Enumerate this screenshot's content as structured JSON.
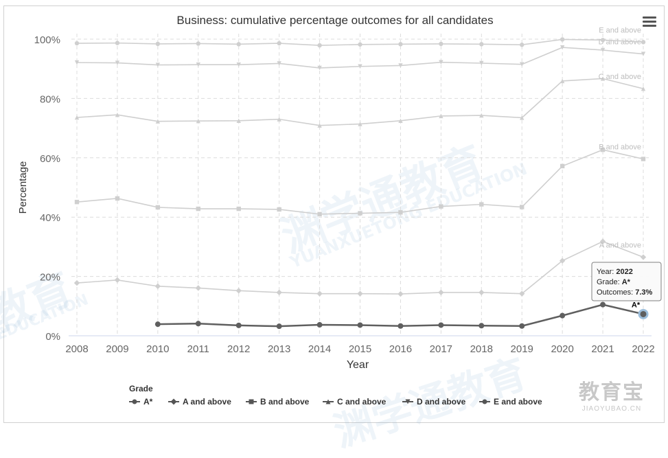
{
  "chart_data": {
    "type": "line",
    "title": "Business: cumulative percentage outcomes for all candidates",
    "xlabel": "Year",
    "ylabel": "Percentage",
    "x": [
      2008,
      2009,
      2010,
      2011,
      2012,
      2013,
      2014,
      2015,
      2016,
      2017,
      2018,
      2019,
      2020,
      2021,
      2022
    ],
    "y_ticks": [
      "0%",
      "20%",
      "40%",
      "60%",
      "80%",
      "100%"
    ],
    "ylim": [
      0,
      100
    ],
    "grid": true,
    "legend_title": "Grade",
    "legend_position": "bottom-left",
    "series": [
      {
        "name": "A*",
        "marker": "circle",
        "highlighted": true,
        "values": [
          null,
          null,
          3.9,
          4.1,
          3.5,
          3.2,
          3.7,
          3.6,
          3.3,
          3.6,
          3.4,
          3.3,
          6.8,
          10.5,
          7.3
        ]
      },
      {
        "name": "A and above",
        "marker": "diamond",
        "values": [
          17.8,
          18.8,
          16.7,
          16.1,
          15.2,
          14.6,
          14.2,
          14.2,
          14.1,
          14.6,
          14.6,
          14.2,
          25.3,
          31.8,
          26.5
        ]
      },
      {
        "name": "B and above",
        "marker": "square",
        "values": [
          45.1,
          46.3,
          43.3,
          42.8,
          42.8,
          42.6,
          41.0,
          41.3,
          41.6,
          43.6,
          44.3,
          43.4,
          57.2,
          62.7,
          59.6
        ]
      },
      {
        "name": "C and above",
        "marker": "triangle",
        "values": [
          73.6,
          74.5,
          72.3,
          72.4,
          72.5,
          73.0,
          70.9,
          71.4,
          72.5,
          74.1,
          74.3,
          73.5,
          85.9,
          86.7,
          83.3
        ]
      },
      {
        "name": "D and above",
        "marker": "triangle-down",
        "values": [
          92.1,
          92.0,
          91.3,
          91.4,
          91.4,
          91.8,
          90.3,
          90.8,
          91.1,
          92.2,
          91.9,
          91.5,
          97.2,
          96.3,
          95.0
        ]
      },
      {
        "name": "E and above",
        "marker": "circle",
        "values": [
          98.6,
          98.7,
          98.4,
          98.5,
          98.3,
          98.6,
          97.9,
          98.2,
          98.3,
          98.4,
          98.3,
          98.1,
          99.9,
          99.7,
          99.0
        ]
      }
    ],
    "end_labels": [
      {
        "series": "A*",
        "text": "A*"
      },
      {
        "series": "A and above",
        "text": "A and above"
      },
      {
        "series": "B and above",
        "text": "B and above"
      },
      {
        "series": "C and above",
        "text": "C and above"
      },
      {
        "series": "D and above",
        "text": "D and above"
      },
      {
        "series": "E and above",
        "text": "E and above"
      }
    ],
    "tooltip": {
      "year_label": "Year:",
      "year": "2022",
      "grade_label": "Grade:",
      "grade": "A*",
      "outcome_label": "Outcomes:",
      "outcome": "7.3%"
    }
  },
  "colors": {
    "highlight": "#5f5f5f",
    "dimmed": "#cfcfcf",
    "grid": "#dcdcdc",
    "text": "#333333",
    "axis_text": "#666666",
    "end_label": "#bdbdbd"
  },
  "icons": {
    "menu": "hamburger-menu-icon"
  },
  "watermark": {
    "cn": "渊学通教育",
    "en": "YUANXUETONG EDUCATION",
    "cn_short": "教育",
    "en_short": "EDUCATION"
  },
  "brand": {
    "name": "教育宝",
    "url": "JIAOYUBAO.CN"
  }
}
